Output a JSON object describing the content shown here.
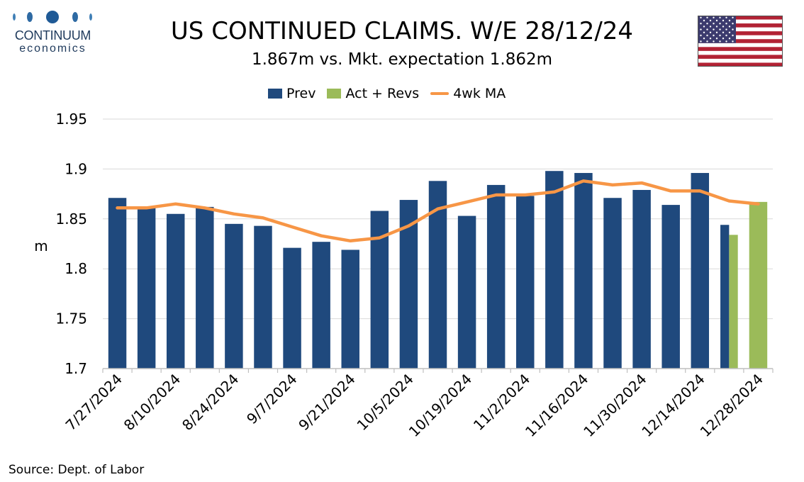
{
  "header": {
    "title": "US CONTINUED CLAIMS. W/E 28/12/24",
    "subtitle": "1.867m vs. Mkt. expectation 1.862m"
  },
  "logo": {
    "name": "CONTINUUM",
    "sub": "economics"
  },
  "flag": {
    "icon": "us-flag-icon"
  },
  "footer": {
    "source": "Source: Dept. of Labor"
  },
  "colors": {
    "prev": "#1f497d",
    "act": "#9bbb59",
    "ma": "#f79646",
    "grid": "#d9d9d9",
    "logo": "#1f3a5c"
  },
  "chart_data": {
    "type": "bar",
    "ylabel": "m",
    "ylim": [
      1.7,
      1.95
    ],
    "yticks": [
      1.7,
      1.75,
      1.8,
      1.85,
      1.9,
      1.95
    ],
    "grid": true,
    "legend_position": "top",
    "categories": [
      "7/27/2024",
      "8/3/2024",
      "8/10/2024",
      "8/17/2024",
      "8/24/2024",
      "8/31/2024",
      "9/7/2024",
      "9/14/2024",
      "9/21/2024",
      "9/28/2024",
      "10/5/2024",
      "10/12/2024",
      "10/19/2024",
      "10/26/2024",
      "11/2/2024",
      "11/9/2024",
      "11/16/2024",
      "11/23/2024",
      "11/30/2024",
      "12/7/2024",
      "12/14/2024",
      "12/21/2024",
      "12/28/2024"
    ],
    "tick_labels": [
      "7/27/2024",
      "8/10/2024",
      "8/24/2024",
      "9/7/2024",
      "9/21/2024",
      "10/5/2024",
      "10/19/2024",
      "11/2/2024",
      "11/16/2024",
      "11/30/2024",
      "12/14/2024",
      "12/28/2024"
    ],
    "series": [
      {
        "name": "Prev",
        "type": "bar",
        "values": [
          1.871,
          1.862,
          1.855,
          1.862,
          1.845,
          1.843,
          1.821,
          1.827,
          1.819,
          1.858,
          1.869,
          1.888,
          1.853,
          1.884,
          1.873,
          1.898,
          1.896,
          1.871,
          1.879,
          1.864,
          1.896,
          1.844,
          null
        ]
      },
      {
        "name": "Act + Revs",
        "type": "bar",
        "values": [
          null,
          null,
          null,
          null,
          null,
          null,
          null,
          null,
          null,
          null,
          null,
          null,
          null,
          null,
          null,
          null,
          null,
          null,
          null,
          null,
          null,
          1.834,
          1.867
        ]
      },
      {
        "name": "4wk MA",
        "type": "line",
        "values": [
          1.861,
          1.861,
          1.865,
          1.861,
          1.855,
          1.851,
          1.842,
          1.833,
          1.828,
          1.831,
          1.843,
          1.86,
          1.867,
          1.874,
          1.874,
          1.877,
          1.888,
          1.884,
          1.886,
          1.878,
          1.878,
          1.868,
          1.865
        ]
      }
    ]
  }
}
